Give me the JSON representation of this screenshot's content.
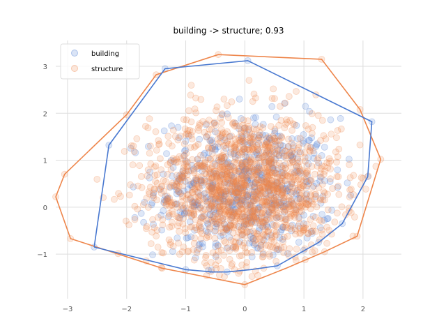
{
  "chart_data": {
    "type": "scatter",
    "title": "building -> structure; 0.93",
    "xlabel": "",
    "ylabel": "",
    "xlim": [
      -3.2,
      2.65
    ],
    "ylim": [
      -1.95,
      3.55
    ],
    "xticks": [
      -3,
      -2,
      -1,
      0,
      1,
      2
    ],
    "yticks": [
      -1,
      0,
      1,
      2,
      3
    ],
    "xtick_labels": [
      "−3",
      "−2",
      "−1",
      "0",
      "1",
      "2"
    ],
    "ytick_labels": [
      "−1",
      "0",
      "1",
      "2",
      "3"
    ],
    "grid": true,
    "legend_position": "top-left",
    "series": [
      {
        "name": "building",
        "color": "#4878d0",
        "approx_center": [
          0.0,
          0.4
        ],
        "approx_spread": [
          0.75,
          0.75
        ],
        "sample_points": [
          [
            -2.55,
            -0.85
          ],
          [
            -2.3,
            1.32
          ],
          [
            -1.35,
            2.95
          ],
          [
            0.05,
            3.12
          ],
          [
            2.15,
            1.82
          ],
          [
            2.08,
            0.65
          ],
          [
            1.65,
            -0.35
          ],
          [
            1.25,
            -0.75
          ],
          [
            0.55,
            -1.25
          ],
          [
            -0.3,
            -1.38
          ],
          [
            -1.0,
            -1.33
          ]
        ],
        "hull": [
          [
            -2.55,
            -0.85
          ],
          [
            -2.3,
            1.32
          ],
          [
            -1.35,
            2.95
          ],
          [
            0.05,
            3.12
          ],
          [
            2.15,
            1.82
          ],
          [
            2.08,
            0.65
          ],
          [
            1.65,
            -0.35
          ],
          [
            1.25,
            -0.75
          ],
          [
            0.55,
            -1.25
          ],
          [
            0.1,
            -1.33
          ],
          [
            -0.3,
            -1.38
          ],
          [
            -0.55,
            -1.38
          ],
          [
            -1.0,
            -1.33
          ],
          [
            -2.55,
            -0.85
          ]
        ]
      },
      {
        "name": "structure",
        "color": "#ee854a",
        "approx_center": [
          0.0,
          0.4
        ],
        "approx_spread": [
          0.8,
          0.8
        ],
        "sample_points": [
          [
            -3.2,
            0.22
          ],
          [
            -3.05,
            0.7
          ],
          [
            -2.95,
            -0.67
          ],
          [
            -2.0,
            1.97
          ],
          [
            -1.5,
            2.82
          ],
          [
            -0.45,
            3.25
          ],
          [
            1.3,
            3.15
          ],
          [
            1.95,
            2.08
          ],
          [
            2.3,
            1.02
          ],
          [
            1.9,
            -0.62
          ],
          [
            1.35,
            -0.95
          ],
          [
            0.0,
            -1.65
          ],
          [
            -1.4,
            -1.3
          ]
        ],
        "hull": [
          [
            -3.2,
            0.22
          ],
          [
            -3.05,
            0.7
          ],
          [
            -2.0,
            1.97
          ],
          [
            -1.5,
            2.82
          ],
          [
            -0.45,
            3.25
          ],
          [
            1.3,
            3.15
          ],
          [
            1.95,
            2.08
          ],
          [
            2.3,
            1.02
          ],
          [
            1.9,
            -0.62
          ],
          [
            1.35,
            -0.95
          ],
          [
            0.7,
            -1.3
          ],
          [
            0.0,
            -1.65
          ],
          [
            -1.4,
            -1.3
          ],
          [
            -2.95,
            -0.67
          ],
          [
            -3.2,
            0.22
          ]
        ]
      }
    ]
  }
}
